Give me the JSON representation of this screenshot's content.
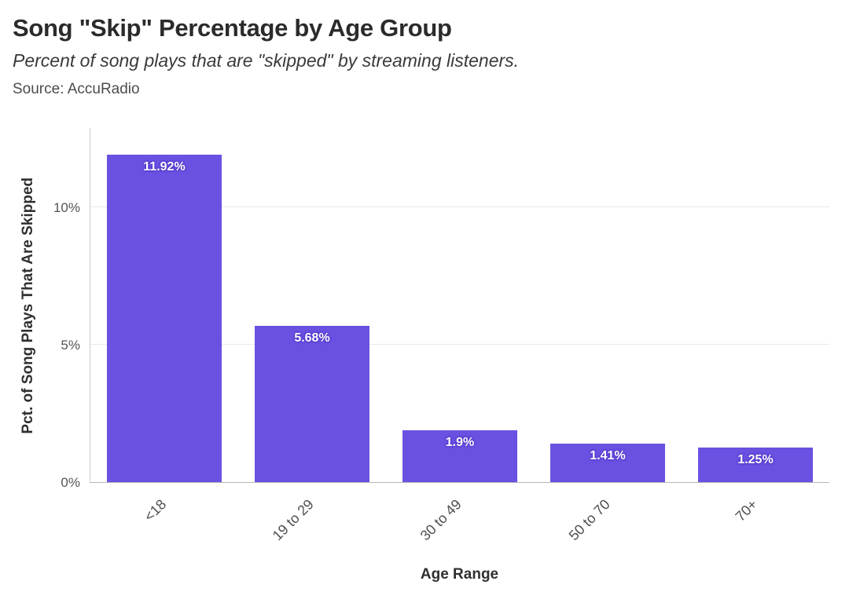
{
  "header": {
    "title": "Song \"Skip\" Percentage by Age Group",
    "subtitle": "Percent of song plays that are \"skipped\" by streaming listeners.",
    "source": "Source: AccuRadio"
  },
  "chart_data": {
    "type": "bar",
    "title": "Song \"Skip\" Percentage by Age Group",
    "subtitle": "Percent of song plays that are \"skipped\" by streaming listeners.",
    "source": "Source: AccuRadio",
    "categories": [
      "<18",
      "19 to 29",
      "30 to 49",
      "50 to 70",
      "70+"
    ],
    "values": [
      11.92,
      5.68,
      1.9,
      1.41,
      1.25
    ],
    "bar_labels": [
      "11.92%",
      "5.68%",
      "1.9%",
      "1.41%",
      "1.25%"
    ],
    "xlabel": "Age Range",
    "ylabel": "Pct. of Song Plays That Are Skipped",
    "ylim": [
      0,
      12.9
    ],
    "yticks": [
      0,
      5,
      10
    ],
    "ytick_labels": [
      "0%",
      "5%",
      "10%"
    ],
    "grid": "horizontal",
    "legend": "none",
    "colors": {
      "bar": "#6b51e1",
      "bar_label_text": "#ffffff",
      "gridline": "#e8e8e8",
      "axis_line": "#b5b5b5",
      "axis_text": "#555555",
      "title_text": "#2b2b2b",
      "background": "#ffffff"
    }
  }
}
